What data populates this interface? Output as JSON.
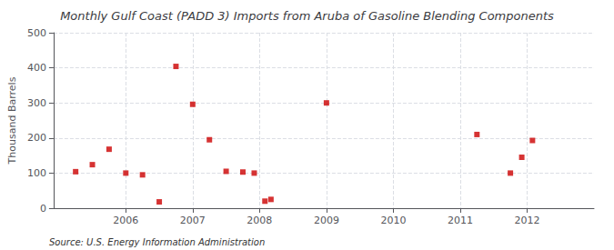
{
  "chart_data": {
    "type": "scatter",
    "title": "Monthly Gulf Coast (PADD 3) Imports from Aruba of Gasoline Blending Components",
    "ylabel": "Thousand Barrels",
    "annotations": [
      "Source: U.S. Energy Information Administration"
    ],
    "x": [
      2005.25,
      2005.5,
      2005.75,
      2006.0,
      2006.25,
      2006.5,
      2006.75,
      2007.0,
      2007.25,
      2007.5,
      2007.75,
      2007.92,
      2008.08,
      2008.17,
      2009.0,
      2011.25,
      2011.75,
      2011.92,
      2012.08
    ],
    "values": [
      104,
      124,
      168,
      100,
      95,
      18,
      404,
      296,
      195,
      105,
      103,
      100,
      20,
      25,
      300,
      210,
      100,
      145,
      193
    ],
    "color": "#cc0000",
    "marker": "square",
    "xlim": [
      2004.92,
      2013.0
    ],
    "xticks": [
      2006,
      2007,
      2008,
      2009,
      2010,
      2011,
      2012
    ],
    "ylim": [
      0,
      500
    ],
    "yticks": [
      0,
      100,
      200,
      300,
      400,
      500
    ],
    "grid": true
  }
}
